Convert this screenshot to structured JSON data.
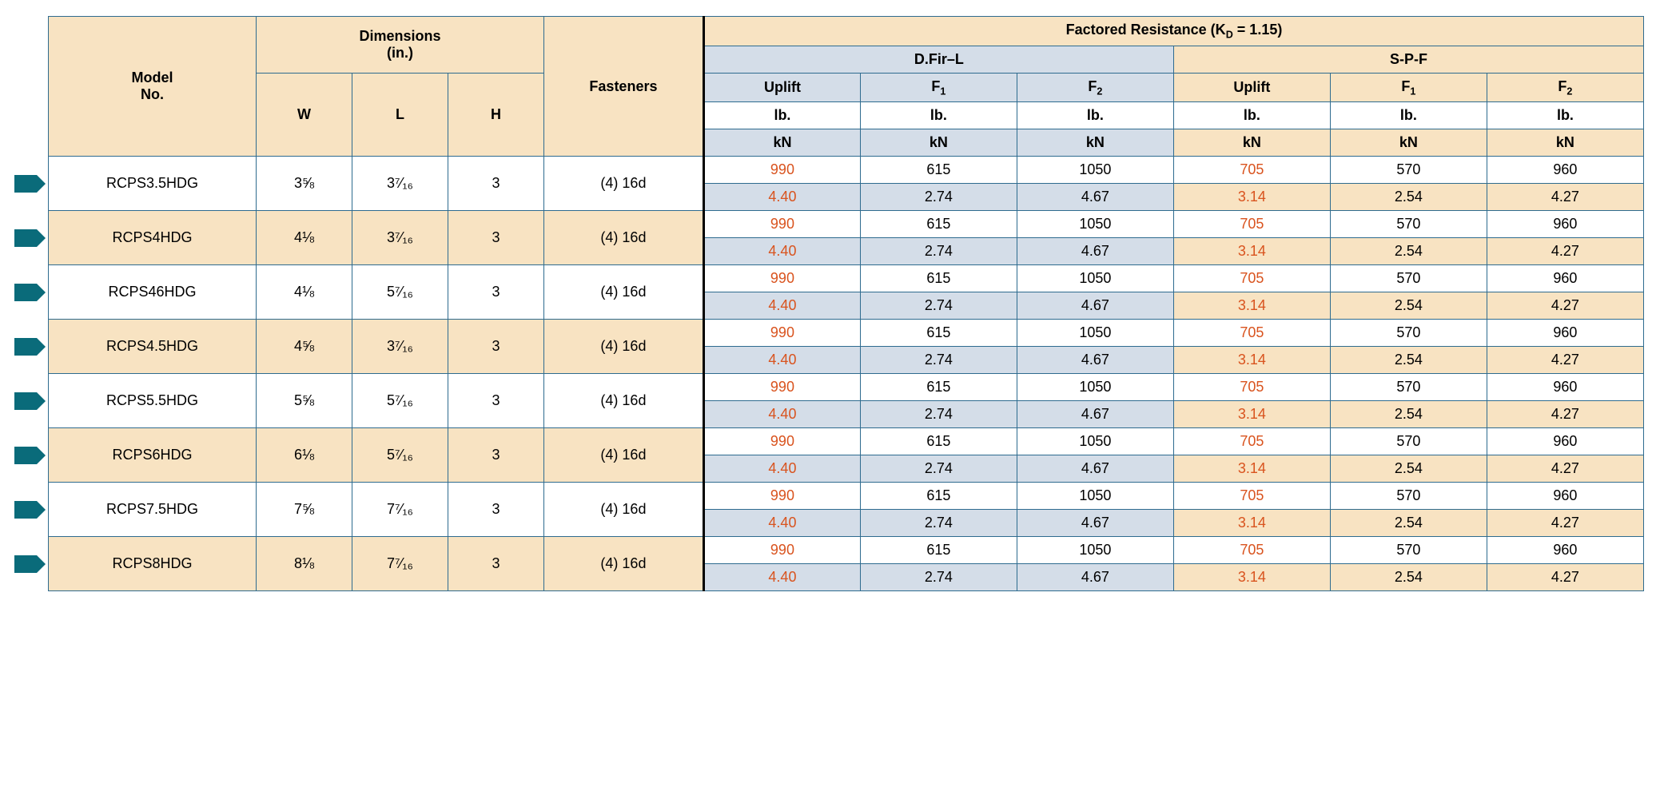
{
  "colors": {
    "border": "#2e6b8f",
    "tan": "#f8e3c2",
    "blue": "#d4dde8",
    "accent_text": "#d9531e",
    "marker": "#0a6b7a",
    "vbar": "#000000"
  },
  "header": {
    "model_no": "Model\nNo.",
    "dimensions": "Dimensions\n(in.)",
    "W": "W",
    "L": "L",
    "H": "H",
    "fasteners": "Fasteners",
    "factored_resistance": "Factored Resistance (K",
    "kd_sub": "D",
    "kd_tail": " = 1.15)",
    "dfir": "D.Fir–L",
    "spf": "S-P-F",
    "uplift": "Uplift",
    "F": "F",
    "F1_sub": "1",
    "F2_sub": "2",
    "lb": "lb.",
    "kN": "kN"
  },
  "rows": [
    {
      "model": "RCPS3.5HDG",
      "W": "3⅝",
      "L": "3⁷⁄₁₆",
      "H": "3",
      "fasteners": "(4) 16d",
      "dfir": {
        "uplift_lb": "990",
        "f1_lb": "615",
        "f2_lb": "1050",
        "uplift_kn": "4.40",
        "f1_kn": "2.74",
        "f2_kn": "4.67"
      },
      "spf": {
        "uplift_lb": "705",
        "f1_lb": "570",
        "f2_lb": "960",
        "uplift_kn": "3.14",
        "f1_kn": "2.54",
        "f2_kn": "4.27"
      }
    },
    {
      "model": "RCPS4HDG",
      "W": "4⅛",
      "L": "3⁷⁄₁₆",
      "H": "3",
      "fasteners": "(4) 16d",
      "dfir": {
        "uplift_lb": "990",
        "f1_lb": "615",
        "f2_lb": "1050",
        "uplift_kn": "4.40",
        "f1_kn": "2.74",
        "f2_kn": "4.67"
      },
      "spf": {
        "uplift_lb": "705",
        "f1_lb": "570",
        "f2_lb": "960",
        "uplift_kn": "3.14",
        "f1_kn": "2.54",
        "f2_kn": "4.27"
      }
    },
    {
      "model": "RCPS46HDG",
      "W": "4⅛",
      "L": "5⁷⁄₁₆",
      "H": "3",
      "fasteners": "(4) 16d",
      "dfir": {
        "uplift_lb": "990",
        "f1_lb": "615",
        "f2_lb": "1050",
        "uplift_kn": "4.40",
        "f1_kn": "2.74",
        "f2_kn": "4.67"
      },
      "spf": {
        "uplift_lb": "705",
        "f1_lb": "570",
        "f2_lb": "960",
        "uplift_kn": "3.14",
        "f1_kn": "2.54",
        "f2_kn": "4.27"
      }
    },
    {
      "model": "RCPS4.5HDG",
      "W": "4⅝",
      "L": "3⁷⁄₁₆",
      "H": "3",
      "fasteners": "(4) 16d",
      "dfir": {
        "uplift_lb": "990",
        "f1_lb": "615",
        "f2_lb": "1050",
        "uplift_kn": "4.40",
        "f1_kn": "2.74",
        "f2_kn": "4.67"
      },
      "spf": {
        "uplift_lb": "705",
        "f1_lb": "570",
        "f2_lb": "960",
        "uplift_kn": "3.14",
        "f1_kn": "2.54",
        "f2_kn": "4.27"
      }
    },
    {
      "model": "RCPS5.5HDG",
      "W": "5⅝",
      "L": "5⁷⁄₁₆",
      "H": "3",
      "fasteners": "(4) 16d",
      "dfir": {
        "uplift_lb": "990",
        "f1_lb": "615",
        "f2_lb": "1050",
        "uplift_kn": "4.40",
        "f1_kn": "2.74",
        "f2_kn": "4.67"
      },
      "spf": {
        "uplift_lb": "705",
        "f1_lb": "570",
        "f2_lb": "960",
        "uplift_kn": "3.14",
        "f1_kn": "2.54",
        "f2_kn": "4.27"
      }
    },
    {
      "model": "RCPS6HDG",
      "W": "6⅛",
      "L": "5⁷⁄₁₆",
      "H": "3",
      "fasteners": "(4) 16d",
      "dfir": {
        "uplift_lb": "990",
        "f1_lb": "615",
        "f2_lb": "1050",
        "uplift_kn": "4.40",
        "f1_kn": "2.74",
        "f2_kn": "4.67"
      },
      "spf": {
        "uplift_lb": "705",
        "f1_lb": "570",
        "f2_lb": "960",
        "uplift_kn": "3.14",
        "f1_kn": "2.54",
        "f2_kn": "4.27"
      }
    },
    {
      "model": "RCPS7.5HDG",
      "W": "7⅝",
      "L": "7⁷⁄₁₆",
      "H": "3",
      "fasteners": "(4) 16d",
      "dfir": {
        "uplift_lb": "990",
        "f1_lb": "615",
        "f2_lb": "1050",
        "uplift_kn": "4.40",
        "f1_kn": "2.74",
        "f2_kn": "4.67"
      },
      "spf": {
        "uplift_lb": "705",
        "f1_lb": "570",
        "f2_lb": "960",
        "uplift_kn": "3.14",
        "f1_kn": "2.54",
        "f2_kn": "4.27"
      }
    },
    {
      "model": "RCPS8HDG",
      "W": "8⅛",
      "L": "7⁷⁄₁₆",
      "H": "3",
      "fasteners": "(4) 16d",
      "dfir": {
        "uplift_lb": "990",
        "f1_lb": "615",
        "f2_lb": "1050",
        "uplift_kn": "4.40",
        "f1_kn": "2.74",
        "f2_kn": "4.67"
      },
      "spf": {
        "uplift_lb": "705",
        "f1_lb": "570",
        "f2_lb": "960",
        "uplift_kn": "3.14",
        "f1_kn": "2.54",
        "f2_kn": "4.27"
      }
    }
  ],
  "col_widths_pct": [
    13,
    6,
    6,
    6,
    10,
    9.8,
    9.8,
    9.8,
    9.8,
    9.8,
    9.8
  ]
}
